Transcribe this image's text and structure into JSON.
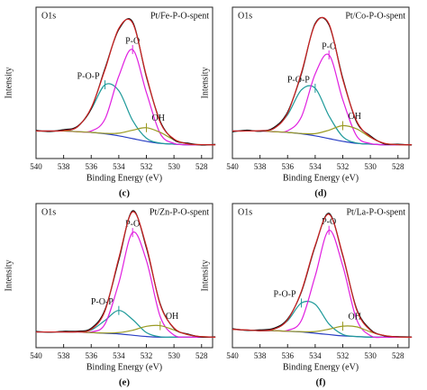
{
  "chart_data": [
    {
      "type": "line",
      "title": "Pt/Fe-P-O-spent",
      "subtitle": "O1s",
      "caption": "(c)",
      "xlabel": "Binding Energy (eV)",
      "ylabel": "Intensity",
      "x": [
        540,
        539,
        538,
        537,
        536,
        535,
        534,
        533,
        532,
        531,
        530,
        529,
        528,
        527
      ],
      "xlim": [
        540,
        527.2
      ],
      "xticks": [
        540,
        538,
        536,
        534,
        532,
        530,
        528
      ],
      "ylim": [
        0,
        110
      ],
      "series": [
        {
          "color": "#2a3fc4",
          "values": [
            20,
            20,
            20,
            19.5,
            19,
            18,
            16.5,
            14.5,
            12.5,
            11,
            10.5,
            10,
            10,
            10
          ]
        },
        {
          "name": "P-O-P",
          "color": "#1f9a9a",
          "values": [
            20,
            20,
            20.3,
            23,
            35.9,
            53.6,
            49.3,
            27.7,
            14.8,
            11.2,
            10.5,
            10,
            10,
            10
          ]
        },
        {
          "name": "P-O",
          "color": "#e020e0",
          "values": [
            20,
            20,
            20,
            19.5,
            20,
            28.7,
            59.9,
            79.2,
            48,
            18.2,
            11,
            10,
            10,
            10
          ]
        },
        {
          "name": "OH",
          "color": "#9a9a22",
          "values": [
            20,
            20,
            20,
            19.5,
            19,
            18.3,
            18.4,
            20.6,
            22.4,
            19,
            13.7,
            10.7,
            10.1,
            10
          ]
        },
        {
          "color": "#111111",
          "values": [
            20.5,
            19.6,
            21,
            23.4,
            36.2,
            65.5,
            93.8,
            99.3,
            59.4,
            27.1,
            13.6,
            11.2,
            9.8,
            10.3
          ]
        },
        {
          "color": "#cc2222",
          "values": [
            20,
            20,
            20.3,
            23,
            36.9,
            64.6,
            94.6,
            98.5,
            60.2,
            26.4,
            14.2,
            10.7,
            10.1,
            10
          ]
        }
      ]
    },
    {
      "type": "line",
      "title": "Pt/Co-P-O-spent",
      "subtitle": "O1s",
      "caption": "(d)",
      "xlabel": "Binding Energy (eV)",
      "ylabel": "Intensity",
      "x": [
        540,
        539,
        538,
        537,
        536,
        535,
        534,
        533,
        532,
        531,
        530,
        529,
        528,
        527
      ],
      "xlim": [
        540,
        527.2
      ],
      "xticks": [
        540,
        538,
        536,
        534,
        532,
        530,
        528
      ],
      "ylim": [
        0,
        110
      ],
      "series": [
        {
          "color": "#2a3fc4",
          "values": [
            20,
            20,
            20,
            19.5,
            19,
            18,
            16.5,
            14.5,
            12.5,
            11,
            10.5,
            10,
            10,
            10
          ]
        },
        {
          "name": "P-O-P",
          "color": "#1f9a9a",
          "values": [
            20,
            20,
            20.2,
            21.8,
            31.8,
            49.9,
            51.1,
            31,
            15.9,
            11.3,
            10.5,
            10,
            10,
            10
          ]
        },
        {
          "name": "P-O",
          "color": "#e020e0",
          "values": [
            20,
            20,
            20,
            19.5,
            20.2,
            30.3,
            61.5,
            75.3,
            42.7,
            16.5,
            10.9,
            10,
            10,
            10
          ]
        },
        {
          "name": "OH",
          "color": "#9a9a22",
          "values": [
            20,
            20,
            20,
            19.5,
            19,
            18.2,
            18.1,
            20.6,
            23.9,
            21.6,
            15.4,
            11.1,
            10.1,
            10
          ]
        },
        {
          "color": "#111111",
          "values": [
            19.4,
            20.6,
            19.8,
            22.5,
            33.8,
            61.5,
            98.3,
            97.2,
            58.4,
            26.6,
            16.5,
            10.7,
            10.4,
            9.8
          ]
        },
        {
          "color": "#cc2222",
          "values": [
            20,
            20,
            20.2,
            21.8,
            33,
            62.4,
            97.7,
            97.9,
            57.5,
            27.4,
            15.8,
            11.1,
            10.1,
            10
          ]
        }
      ]
    },
    {
      "type": "line",
      "title": "Pt/Zn-P-O-spent",
      "subtitle": "O1s",
      "caption": "(e)",
      "xlabel": "Binding Energy (eV)",
      "ylabel": "Intensity",
      "x": [
        540,
        539,
        538,
        537,
        536,
        535,
        534,
        533,
        532,
        531,
        530,
        529,
        528,
        527
      ],
      "xlim": [
        540,
        527.2
      ],
      "xticks": [
        540,
        538,
        536,
        534,
        532,
        530,
        528
      ],
      "ylim": [
        0,
        110
      ],
      "series": [
        {
          "color": "#2a3fc4",
          "values": [
            12,
            12,
            12,
            12,
            11.5,
            11,
            10.5,
            9.5,
            8.5,
            8,
            8,
            8,
            8,
            8
          ]
        },
        {
          "name": "P-O-P",
          "color": "#1f9a9a",
          "values": [
            12,
            12,
            12,
            12.1,
            13.5,
            20.8,
            28.4,
            21.5,
            11.5,
            8.3,
            8,
            8,
            8,
            8
          ]
        },
        {
          "name": "P-O",
          "color": "#e020e0",
          "values": [
            12,
            12,
            12,
            12,
            12,
            18.1,
            49.4,
            87.9,
            66.6,
            23.8,
            9.6,
            8.1,
            8,
            8
          ]
        },
        {
          "name": "OH",
          "color": "#9a9a22",
          "values": [
            12,
            12,
            12,
            12,
            11.5,
            11.2,
            11.5,
            13.3,
            16.3,
            16.8,
            13.5,
            9.9,
            8.4,
            8
          ]
        },
        {
          "color": "#111111",
          "values": [
            12.4,
            11.8,
            12.5,
            12.6,
            14.8,
            29,
            66.9,
            104.5,
            76.2,
            33.5,
            14.7,
            10.4,
            8.1,
            8.3
          ]
        },
        {
          "color": "#cc2222",
          "values": [
            12,
            12,
            12,
            12.1,
            14,
            28.1,
            68.3,
            103.7,
            77.4,
            32.9,
            15.1,
            10,
            8.4,
            8
          ]
        }
      ]
    },
    {
      "type": "line",
      "title": "Pt/La-P-O-spent",
      "subtitle": "O1s",
      "caption": "(f)",
      "xlabel": "Binding Energy (eV)",
      "ylabel": "Intensity",
      "x": [
        540,
        539,
        538,
        537,
        536,
        535,
        534,
        533,
        532,
        531,
        530,
        529,
        528,
        527
      ],
      "xlim": [
        540,
        527.2
      ],
      "xticks": [
        540,
        538,
        536,
        534,
        532,
        530,
        528
      ],
      "ylim": [
        0,
        110
      ],
      "series": [
        {
          "color": "#2a3fc4",
          "values": [
            14,
            13.5,
            13,
            13,
            12.5,
            12,
            11,
            10,
            9,
            8.5,
            8,
            8,
            8,
            8
          ]
        },
        {
          "name": "P-O-P",
          "color": "#1f9a9a",
          "values": [
            14,
            13.5,
            13,
            14.1,
            20.6,
            34.1,
            33.1,
            18.1,
            10.1,
            8.5,
            8,
            8,
            8,
            8
          ]
        },
        {
          "name": "P-O",
          "color": "#e020e0",
          "values": [
            14,
            13.5,
            13,
            13,
            13.2,
            20.8,
            54.7,
            89.6,
            62.4,
            21.6,
            9.2,
            8,
            8,
            8
          ]
        },
        {
          "name": "OH",
          "color": "#9a9a22",
          "values": [
            14,
            13.5,
            13,
            13,
            12.5,
            12.2,
            12.3,
            14.1,
            16.4,
            15.9,
            12.1,
            9.3,
            8.2,
            8
          ]
        },
        {
          "color": "#111111",
          "values": [
            14.5,
            13.2,
            13.6,
            14.8,
            21.9,
            42.5,
            77.4,
            102.6,
            70.2,
            29.8,
            13.9,
            9.1,
            8.4,
            8.1
          ]
        },
        {
          "color": "#cc2222",
          "values": [
            14,
            13.5,
            13,
            14.1,
            21.3,
            43.1,
            78.1,
            101.8,
            70.9,
            29,
            13.3,
            9.3,
            8.2,
            8
          ]
        }
      ]
    }
  ]
}
